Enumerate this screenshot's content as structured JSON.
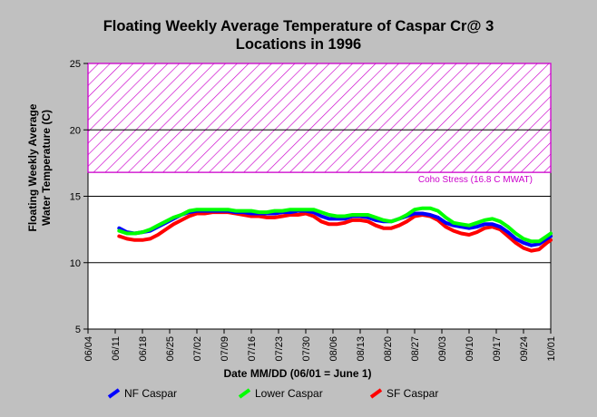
{
  "chart_data": {
    "type": "line",
    "title_line1": "Floating Weekly Average Temperature of Caspar Cr@ 3",
    "title_line2": "Locations in 1996",
    "xlabel": "Date MM/DD (06/01 = June 1)",
    "ylabel_line1": "Floating Weekly Average",
    "ylabel_line2": "Water Temperature (C)",
    "x_ticks": [
      "06/04",
      "06/11",
      "06/18",
      "06/25",
      "07/02",
      "07/09",
      "07/16",
      "07/23",
      "07/30",
      "08/06",
      "08/13",
      "08/20",
      "08/27",
      "09/03",
      "09/10",
      "09/17",
      "09/24",
      "10/01"
    ],
    "xlim": [
      "06/04",
      "10/01"
    ],
    "ylim": [
      5,
      25
    ],
    "y_ticks": [
      5,
      10,
      15,
      20,
      25
    ],
    "threshold_band": {
      "label": "Coho Stress (16.8 C MWAT)",
      "from": 16.8,
      "to": 25,
      "color": "#cc00cc"
    },
    "gridlines_y": [
      10,
      15,
      20
    ],
    "series": [
      {
        "name": "NF Caspar",
        "color": "#0000ff",
        "points": [
          [
            "06/12",
            12.6
          ],
          [
            "06/14",
            12.3
          ],
          [
            "06/16",
            12.2
          ],
          [
            "06/18",
            12.3
          ],
          [
            "06/20",
            12.4
          ],
          [
            "06/22",
            12.7
          ],
          [
            "06/24",
            13.0
          ],
          [
            "06/26",
            13.3
          ],
          [
            "06/28",
            13.6
          ],
          [
            "06/30",
            13.8
          ],
          [
            "07/02",
            13.9
          ],
          [
            "07/04",
            13.9
          ],
          [
            "07/06",
            13.9
          ],
          [
            "07/08",
            13.9
          ],
          [
            "07/10",
            13.9
          ],
          [
            "07/12",
            13.8
          ],
          [
            "07/14",
            13.8
          ],
          [
            "07/16",
            13.7
          ],
          [
            "07/18",
            13.7
          ],
          [
            "07/20",
            13.7
          ],
          [
            "07/22",
            13.7
          ],
          [
            "07/24",
            13.8
          ],
          [
            "07/26",
            13.8
          ],
          [
            "07/28",
            13.9
          ],
          [
            "07/30",
            13.9
          ],
          [
            "08/01",
            13.8
          ],
          [
            "08/03",
            13.5
          ],
          [
            "08/05",
            13.3
          ],
          [
            "08/07",
            13.3
          ],
          [
            "08/09",
            13.3
          ],
          [
            "08/11",
            13.5
          ],
          [
            "08/13",
            13.5
          ],
          [
            "08/15",
            13.4
          ],
          [
            "08/17",
            13.2
          ],
          [
            "08/19",
            13.1
          ],
          [
            "08/21",
            13.1
          ],
          [
            "08/23",
            13.3
          ],
          [
            "08/25",
            13.5
          ],
          [
            "08/27",
            13.7
          ],
          [
            "08/29",
            13.7
          ],
          [
            "08/31",
            13.6
          ],
          [
            "09/02",
            13.4
          ],
          [
            "09/04",
            13.0
          ],
          [
            "09/06",
            12.8
          ],
          [
            "09/08",
            12.7
          ],
          [
            "09/10",
            12.6
          ],
          [
            "09/12",
            12.7
          ],
          [
            "09/14",
            12.9
          ],
          [
            "09/16",
            12.9
          ],
          [
            "09/18",
            12.7
          ],
          [
            "09/20",
            12.3
          ],
          [
            "09/22",
            11.8
          ],
          [
            "09/24",
            11.5
          ],
          [
            "09/26",
            11.3
          ],
          [
            "09/28",
            11.4
          ],
          [
            "09/30",
            11.8
          ],
          [
            "10/01",
            12.0
          ]
        ]
      },
      {
        "name": "Lower Caspar",
        "color": "#00ff00",
        "points": [
          [
            "06/12",
            12.4
          ],
          [
            "06/14",
            12.2
          ],
          [
            "06/16",
            12.2
          ],
          [
            "06/18",
            12.3
          ],
          [
            "06/20",
            12.5
          ],
          [
            "06/22",
            12.8
          ],
          [
            "06/24",
            13.1
          ],
          [
            "06/26",
            13.4
          ],
          [
            "06/28",
            13.6
          ],
          [
            "06/30",
            13.9
          ],
          [
            "07/02",
            14.0
          ],
          [
            "07/04",
            14.0
          ],
          [
            "07/06",
            14.0
          ],
          [
            "07/08",
            14.0
          ],
          [
            "07/10",
            14.0
          ],
          [
            "07/12",
            13.9
          ],
          [
            "07/14",
            13.9
          ],
          [
            "07/16",
            13.9
          ],
          [
            "07/18",
            13.8
          ],
          [
            "07/20",
            13.8
          ],
          [
            "07/22",
            13.9
          ],
          [
            "07/24",
            13.9
          ],
          [
            "07/26",
            14.0
          ],
          [
            "07/28",
            14.0
          ],
          [
            "07/30",
            14.0
          ],
          [
            "08/01",
            14.0
          ],
          [
            "08/03",
            13.8
          ],
          [
            "08/05",
            13.6
          ],
          [
            "08/07",
            13.5
          ],
          [
            "08/09",
            13.5
          ],
          [
            "08/11",
            13.6
          ],
          [
            "08/13",
            13.6
          ],
          [
            "08/15",
            13.6
          ],
          [
            "08/17",
            13.4
          ],
          [
            "08/19",
            13.2
          ],
          [
            "08/21",
            13.1
          ],
          [
            "08/23",
            13.3
          ],
          [
            "08/25",
            13.6
          ],
          [
            "08/27",
            14.0
          ],
          [
            "08/29",
            14.1
          ],
          [
            "08/31",
            14.1
          ],
          [
            "09/02",
            13.9
          ],
          [
            "09/04",
            13.4
          ],
          [
            "09/06",
            13.0
          ],
          [
            "09/08",
            12.9
          ],
          [
            "09/10",
            12.8
          ],
          [
            "09/12",
            13.0
          ],
          [
            "09/14",
            13.2
          ],
          [
            "09/16",
            13.3
          ],
          [
            "09/18",
            13.1
          ],
          [
            "09/20",
            12.7
          ],
          [
            "09/22",
            12.2
          ],
          [
            "09/24",
            11.8
          ],
          [
            "09/26",
            11.6
          ],
          [
            "09/28",
            11.6
          ],
          [
            "09/30",
            12.0
          ],
          [
            "10/01",
            12.2
          ]
        ]
      },
      {
        "name": "SF Caspar",
        "color": "#ff0000",
        "points": [
          [
            "06/12",
            12.0
          ],
          [
            "06/14",
            11.8
          ],
          [
            "06/16",
            11.7
          ],
          [
            "06/18",
            11.7
          ],
          [
            "06/20",
            11.8
          ],
          [
            "06/22",
            12.1
          ],
          [
            "06/24",
            12.5
          ],
          [
            "06/26",
            12.9
          ],
          [
            "06/28",
            13.2
          ],
          [
            "06/30",
            13.5
          ],
          [
            "07/02",
            13.7
          ],
          [
            "07/04",
            13.7
          ],
          [
            "07/06",
            13.8
          ],
          [
            "07/08",
            13.8
          ],
          [
            "07/10",
            13.8
          ],
          [
            "07/12",
            13.7
          ],
          [
            "07/14",
            13.6
          ],
          [
            "07/16",
            13.5
          ],
          [
            "07/18",
            13.5
          ],
          [
            "07/20",
            13.4
          ],
          [
            "07/22",
            13.4
          ],
          [
            "07/24",
            13.5
          ],
          [
            "07/26",
            13.6
          ],
          [
            "07/28",
            13.6
          ],
          [
            "07/30",
            13.7
          ],
          [
            "08/01",
            13.5
          ],
          [
            "08/03",
            13.1
          ],
          [
            "08/05",
            12.9
          ],
          [
            "08/07",
            12.9
          ],
          [
            "08/09",
            13.0
          ],
          [
            "08/11",
            13.2
          ],
          [
            "08/13",
            13.2
          ],
          [
            "08/15",
            13.1
          ],
          [
            "08/17",
            12.8
          ],
          [
            "08/19",
            12.6
          ],
          [
            "08/21",
            12.6
          ],
          [
            "08/23",
            12.8
          ],
          [
            "08/25",
            13.1
          ],
          [
            "08/27",
            13.5
          ],
          [
            "08/29",
            13.6
          ],
          [
            "08/31",
            13.5
          ],
          [
            "09/02",
            13.2
          ],
          [
            "09/04",
            12.7
          ],
          [
            "09/06",
            12.4
          ],
          [
            "09/08",
            12.2
          ],
          [
            "09/10",
            12.1
          ],
          [
            "09/12",
            12.3
          ],
          [
            "09/14",
            12.6
          ],
          [
            "09/16",
            12.7
          ],
          [
            "09/18",
            12.5
          ],
          [
            "09/20",
            12.0
          ],
          [
            "09/22",
            11.5
          ],
          [
            "09/24",
            11.1
          ],
          [
            "09/26",
            10.9
          ],
          [
            "09/28",
            11.0
          ],
          [
            "09/30",
            11.5
          ],
          [
            "10/01",
            11.7
          ]
        ]
      }
    ],
    "legend": {
      "position": "bottom"
    },
    "grid": true
  }
}
